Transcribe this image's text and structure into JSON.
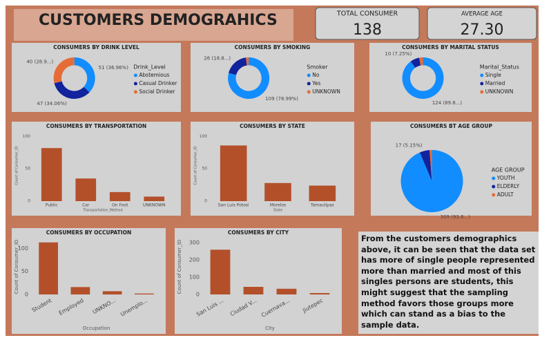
{
  "header": {
    "title": "CUSTOMERS DEMOGRAHICS"
  },
  "kpis": [
    {
      "label": "TOTAL CONSUMER",
      "value": "138"
    },
    {
      "label": "AVERAGE AGE",
      "value": "27.30"
    }
  ],
  "chart_data": [
    {
      "type": "donut",
      "title": "CONSUMERS BY DRINK LEVEL",
      "legend_title": "Drink_Level",
      "categories": [
        "Abstemious",
        "Casual Drinker",
        "Social Drinker"
      ],
      "values": [
        51,
        47,
        40
      ],
      "value_labels": [
        "51 (36.96%)",
        "47 (34.06%)",
        "40 (28.9...)"
      ],
      "colors": [
        "#118dff",
        "#12239e",
        "#e66c37"
      ]
    },
    {
      "type": "donut",
      "title": "CONSUMERS BY SMOKING",
      "legend_title": "Smoker",
      "categories": [
        "No",
        "Yes",
        "UNKNOWN"
      ],
      "values": [
        109,
        26,
        3
      ],
      "value_labels": [
        "109 (78.99%)",
        "26 (18.8...)",
        null
      ],
      "colors": [
        "#118dff",
        "#12239e",
        "#e66c37"
      ]
    },
    {
      "type": "donut",
      "title": "CONSUMERS BY MARITAL STATUS",
      "legend_title": "Marital_Status",
      "categories": [
        "Single",
        "Married",
        "UNKNOWN"
      ],
      "values": [
        124,
        10,
        4
      ],
      "value_labels": [
        "124 (89.8...)",
        "10 (7.25%)",
        null
      ],
      "colors": [
        "#118dff",
        "#12239e",
        "#e66c37"
      ]
    },
    {
      "type": "bar",
      "title": "CONSUMERS BY TRANSPORTATION",
      "x_label": "Transportation_Method",
      "y_label": "Count of Consumer_ID",
      "categories": [
        "Public",
        "Car",
        "On Foot",
        "UNKNOWN"
      ],
      "values": [
        82,
        35,
        14,
        7
      ],
      "color": "#b3502a",
      "ylim": [
        0,
        110
      ],
      "yticks": [
        0,
        50,
        100
      ]
    },
    {
      "type": "bar",
      "title": "CONSUMERS BY STATE",
      "x_label": "State",
      "y_label": "Count of Consumer_ID",
      "categories": [
        "San Luis Potosi",
        "Morelos",
        "Tamaulipas"
      ],
      "values": [
        86,
        28,
        24
      ],
      "color": "#b3502a",
      "ylim": [
        0,
        110
      ],
      "yticks": [
        0,
        50,
        100
      ]
    },
    {
      "type": "pie",
      "title": "CONSUMERS BT AGE GROUP",
      "legend_title": "AGE GROUP",
      "categories": [
        "YOUTH",
        "ELDERLY",
        "ADULT"
      ],
      "values": [
        309,
        17,
        4
      ],
      "value_labels": [
        "309 (93.6...)",
        "17 (5.15%)",
        null
      ],
      "colors": [
        "#118dff",
        "#12239e",
        "#e66c37"
      ]
    },
    {
      "type": "bar",
      "title": "CONSUMERS BY OCCUPATION",
      "x_label": "Occupation",
      "y_label": "Count of Consumer_ID",
      "categories": [
        "Student",
        "Employed",
        "UNKNO...",
        "Unemplo..."
      ],
      "values": [
        113,
        16,
        7,
        2
      ],
      "color": "#b3502a",
      "ylim": [
        0,
        120
      ],
      "yticks": [
        0,
        50,
        100
      ]
    },
    {
      "type": "bar",
      "title": "CONSUMERS BY CITY",
      "x_label": "City",
      "y_label": "Count of Consumer_ID",
      "categories": [
        "San Luis ...",
        "Ciudad V...",
        "Cuernava...",
        "Jiutepec"
      ],
      "values": [
        259,
        44,
        33,
        8
      ],
      "color": "#b3502a",
      "ylim": [
        0,
        320
      ],
      "yticks": [
        0,
        100,
        200,
        300
      ]
    }
  ],
  "note": "From the customers demographics above, it can  be seen that the data set has more of single people represented more than married and most of this singles persons are students, this might suggest that the sampling method favors those groups more which can stand as a bias to the sample data."
}
